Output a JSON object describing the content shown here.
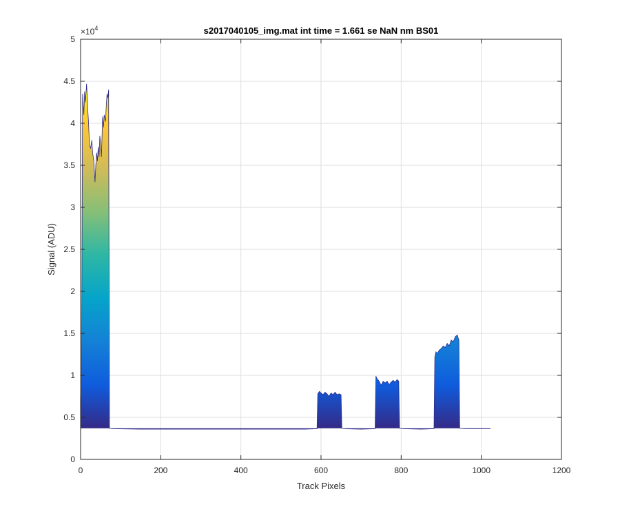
{
  "chart_data": {
    "type": "area",
    "title": "s2017040105_img.mat int time = 1.661 se  NaN nm BS01",
    "xlabel": "Track Pixels",
    "ylabel": "Signal (ADU)",
    "xlim": [
      0,
      1200
    ],
    "ylim": [
      0,
      50000
    ],
    "x_ticks": [
      0,
      200,
      400,
      600,
      800,
      1000,
      1200
    ],
    "x_tick_labels": [
      "0",
      "200",
      "400",
      "600",
      "800",
      "1000",
      "1200"
    ],
    "y_ticks": [
      0,
      5000,
      10000,
      15000,
      20000,
      25000,
      30000,
      35000,
      40000,
      45000,
      50000
    ],
    "y_tick_labels": [
      "0",
      "0.5",
      "1",
      "1.5",
      "2",
      "2.5",
      "3",
      "3.5",
      "4",
      "4.5",
      "5"
    ],
    "y_exponent_label": "×10",
    "y_exponent_power": "4",
    "grid": true,
    "baseline": 3700,
    "colormap": [
      "#352a87",
      "#0f5cdd",
      "#1481d6",
      "#06a4ca",
      "#2eb7a4",
      "#87bf77",
      "#d1bb59",
      "#fec832",
      "#f9fb0e"
    ],
    "x": [
      0,
      2,
      5,
      8,
      10,
      12,
      15,
      18,
      20,
      22,
      25,
      28,
      30,
      33,
      36,
      38,
      40,
      42,
      44,
      46,
      48,
      50,
      52,
      55,
      57,
      59,
      62,
      64,
      66,
      68,
      70,
      72,
      80,
      150,
      300,
      450,
      560,
      590,
      592,
      596,
      600,
      605,
      610,
      615,
      620,
      625,
      630,
      635,
      640,
      645,
      650,
      652,
      660,
      700,
      735,
      737,
      740,
      745,
      750,
      755,
      760,
      765,
      770,
      775,
      780,
      785,
      790,
      794,
      796,
      805,
      850,
      882,
      884,
      887,
      890,
      895,
      900,
      905,
      910,
      915,
      920,
      925,
      930,
      935,
      940,
      944,
      946,
      960,
      1000,
      1023
    ],
    "y": [
      3700,
      8000,
      43500,
      41000,
      43800,
      42500,
      44700,
      41500,
      40000,
      37500,
      37000,
      38000,
      36500,
      35500,
      33000,
      35000,
      36500,
      35500,
      37200,
      36000,
      38500,
      37500,
      36000,
      40800,
      39500,
      41000,
      40200,
      42000,
      43500,
      43000,
      44000,
      3700,
      3650,
      3600,
      3600,
      3600,
      3600,
      3650,
      7800,
      8100,
      7900,
      7700,
      8000,
      7800,
      7500,
      7900,
      7700,
      8000,
      7700,
      7800,
      7700,
      3700,
      3650,
      3600,
      3650,
      9900,
      9600,
      9300,
      8800,
      9300,
      9100,
      9300,
      8900,
      9200,
      9400,
      9200,
      9500,
      9300,
      3700,
      3650,
      3600,
      3650,
      12200,
      12800,
      12600,
      13000,
      13200,
      13500,
      13300,
      13800,
      13500,
      14200,
      14000,
      14600,
      14800,
      14200,
      3700,
      3650,
      3650,
      3650
    ]
  }
}
